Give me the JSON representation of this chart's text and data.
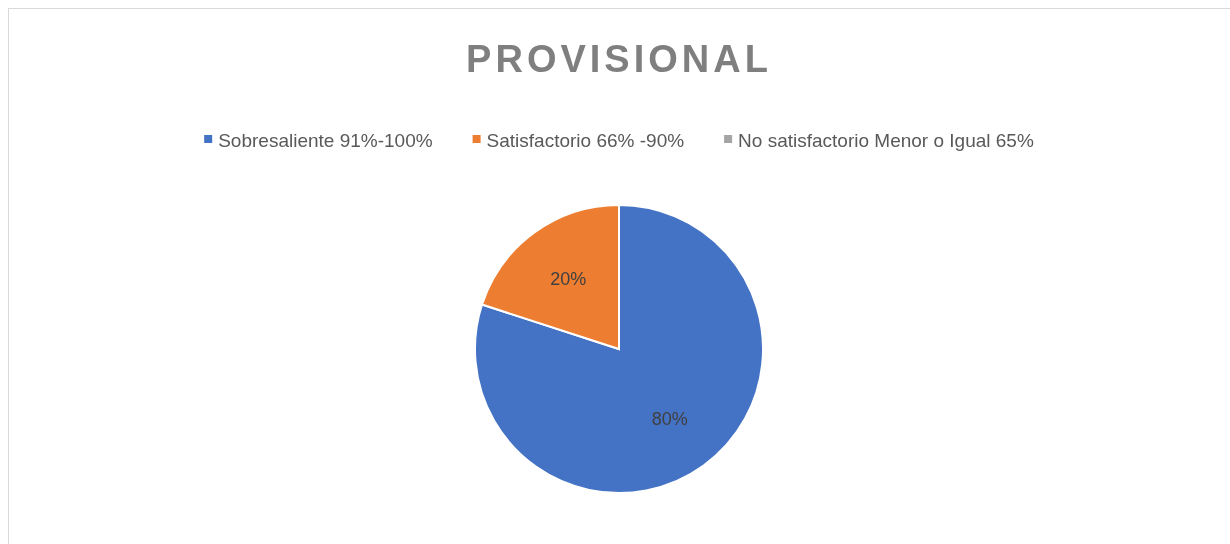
{
  "chart_data": {
    "type": "pie",
    "title": "PROVISIONAL",
    "categories": [
      "Sobresaliente 91%-100%",
      "Satisfactorio  66% -90%",
      "No satisfactorio Menor o Igual  65%"
    ],
    "values": [
      80,
      20,
      0
    ],
    "colors": [
      "#4472c4",
      "#ed7d31",
      "#a5a5a5"
    ],
    "value_labels": [
      "80%",
      "20%",
      null
    ],
    "legend": "top"
  }
}
